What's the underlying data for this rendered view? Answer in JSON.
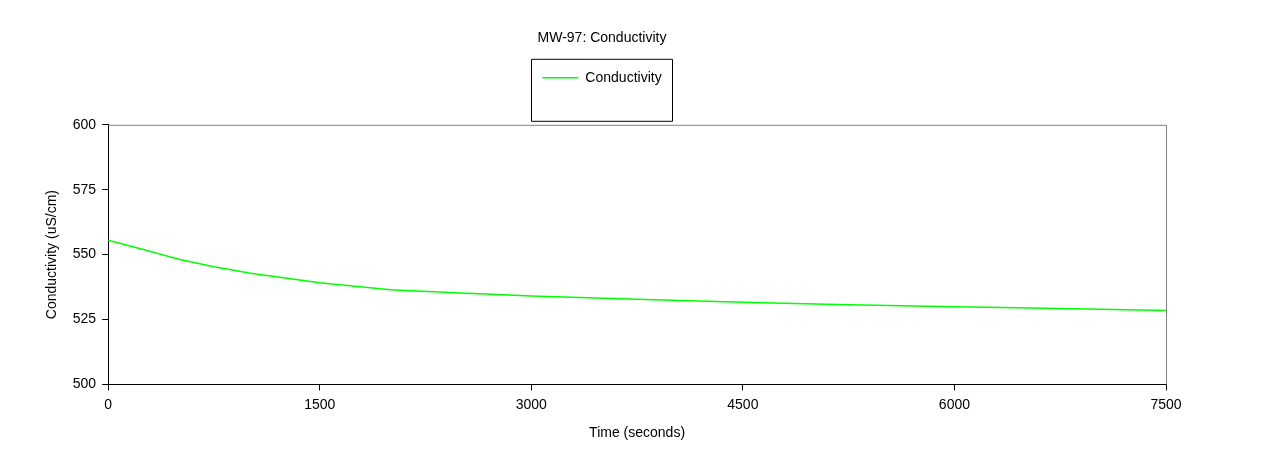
{
  "chart_data": {
    "type": "line",
    "title": "MW-97: Conductivity",
    "xlabel": "Time (seconds)",
    "ylabel": "Conductivity (uS/cm)",
    "x": [
      0,
      250,
      500,
      750,
      1000,
      1500,
      2000,
      2500,
      3000,
      3750,
      4500,
      5250,
      6000,
      6750,
      7500
    ],
    "series": [
      {
        "name": "Conductivity",
        "color": "#00ff00",
        "values": [
          555.5,
          552,
          548.2,
          545.3,
          542.9,
          539.2,
          536.5,
          535.2,
          534.1,
          532.8,
          531.6,
          530.7,
          529.9,
          529.2,
          528.5
        ]
      }
    ],
    "xlim": [
      0,
      7500
    ],
    "xticks": [
      0,
      1500,
      3000,
      4500,
      6000,
      7500
    ],
    "ylim": [
      500,
      600
    ],
    "yticks": [
      500,
      525,
      550,
      575,
      600
    ],
    "grid": false,
    "legend": "top",
    "marker": "none",
    "line_style": "solid"
  }
}
